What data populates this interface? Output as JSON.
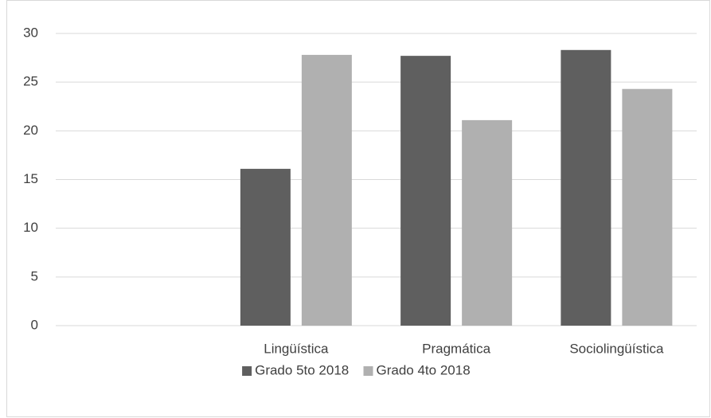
{
  "chart_data": {
    "type": "bar",
    "categories": [
      null,
      "Lingüística",
      "Pragmática",
      "Sociolingüística"
    ],
    "series": [
      {
        "name": "Grado 5to 2018",
        "color": "#5f5f5f",
        "values": [
          null,
          16.1,
          27.7,
          28.3
        ]
      },
      {
        "name": "Grado 4to 2018",
        "color": "#b0b0b0",
        "values": [
          null,
          27.8,
          21.1,
          24.3
        ]
      }
    ],
    "ylim": [
      0,
      30
    ],
    "yticks": [
      0,
      5,
      10,
      15,
      20,
      25,
      30
    ],
    "grid": true,
    "legend": "bottom"
  }
}
